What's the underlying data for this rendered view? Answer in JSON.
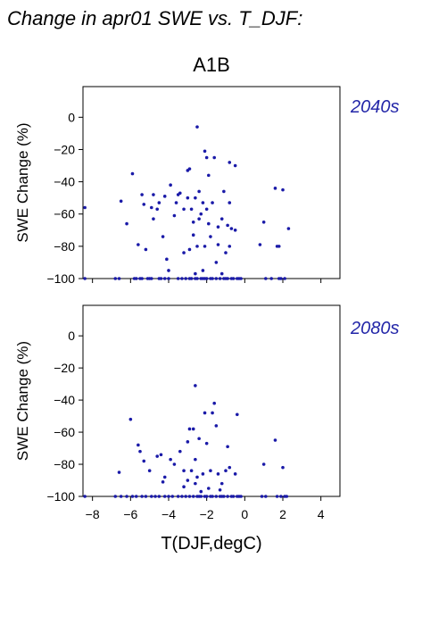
{
  "title": "Change in apr01 SWE vs. T_DJF:",
  "scenario": "A1B",
  "xlabel": "T(DJF,degC)",
  "colors": {
    "points": "#1a1aa8",
    "period_label": "#2326a8",
    "axes": "#000000"
  },
  "chart_data": [
    {
      "type": "scatter",
      "period": "2040s",
      "ylabel": "SWE Change (%)",
      "xlim": [
        -8.5,
        5
      ],
      "ylim": [
        -100,
        19
      ],
      "xticks": [
        -8,
        -6,
        -4,
        -2,
        0,
        2,
        4
      ],
      "yticks": [
        -100,
        -80,
        -60,
        -40,
        -20,
        0
      ],
      "points": [
        [
          -8.4,
          -100
        ],
        [
          -8.4,
          -56
        ],
        [
          -6.8,
          -100
        ],
        [
          -6.6,
          -100
        ],
        [
          -6.5,
          -52
        ],
        [
          -6.2,
          -66
        ],
        [
          -5.9,
          -35
        ],
        [
          -5.8,
          -100
        ],
        [
          -5.7,
          -100
        ],
        [
          -5.6,
          -79
        ],
        [
          -5.5,
          -100
        ],
        [
          -5.4,
          -48
        ],
        [
          -5.4,
          -100
        ],
        [
          -5.3,
          -54
        ],
        [
          -5.2,
          -82
        ],
        [
          -5.1,
          -100
        ],
        [
          -5.0,
          -100
        ],
        [
          -4.9,
          -56
        ],
        [
          -4.9,
          -100
        ],
        [
          -4.8,
          -48
        ],
        [
          -4.8,
          -63
        ],
        [
          -4.6,
          -57
        ],
        [
          -4.5,
          -100
        ],
        [
          -4.5,
          -53
        ],
        [
          -4.4,
          -100
        ],
        [
          -4.3,
          -74
        ],
        [
          -4.2,
          -100
        ],
        [
          -4.2,
          -49
        ],
        [
          -4.1,
          -88
        ],
        [
          -4.0,
          -95
        ],
        [
          -4.0,
          -100
        ],
        [
          -3.9,
          -42
        ],
        [
          -3.7,
          -61
        ],
        [
          -3.6,
          -53
        ],
        [
          -3.5,
          -100
        ],
        [
          -3.5,
          -48
        ],
        [
          -3.4,
          -47
        ],
        [
          -3.3,
          -100
        ],
        [
          -3.2,
          -84
        ],
        [
          -3.2,
          -57
        ],
        [
          -3.1,
          -100
        ],
        [
          -3.0,
          -33
        ],
        [
          -3.0,
          -50
        ],
        [
          -2.9,
          -100
        ],
        [
          -2.9,
          -82
        ],
        [
          -2.9,
          -32
        ],
        [
          -2.8,
          -57
        ],
        [
          -2.8,
          -100
        ],
        [
          -2.7,
          -73
        ],
        [
          -2.7,
          -65
        ],
        [
          -2.6,
          -100
        ],
        [
          -2.6,
          -50
        ],
        [
          -2.6,
          -97
        ],
        [
          -2.5,
          -6
        ],
        [
          -2.5,
          -100
        ],
        [
          -2.5,
          -80
        ],
        [
          -2.4,
          -63
        ],
        [
          -2.4,
          -46
        ],
        [
          -2.3,
          -100
        ],
        [
          -2.3,
          -60
        ],
        [
          -2.2,
          -100
        ],
        [
          -2.2,
          -53
        ],
        [
          -2.2,
          -95
        ],
        [
          -2.1,
          -100
        ],
        [
          -2.1,
          -80
        ],
        [
          -2.1,
          -21
        ],
        [
          -2.0,
          -25
        ],
        [
          -2.0,
          -57
        ],
        [
          -2.0,
          -100
        ],
        [
          -1.9,
          -66
        ],
        [
          -1.9,
          -36
        ],
        [
          -1.8,
          -100
        ],
        [
          -1.8,
          -74
        ],
        [
          -1.7,
          -100
        ],
        [
          -1.7,
          -53
        ],
        [
          -1.6,
          -25
        ],
        [
          -1.5,
          -100
        ],
        [
          -1.5,
          -90
        ],
        [
          -1.4,
          -79
        ],
        [
          -1.4,
          -68
        ],
        [
          -1.3,
          -100
        ],
        [
          -1.2,
          -63
        ],
        [
          -1.2,
          -97
        ],
        [
          -1.1,
          -100
        ],
        [
          -1.1,
          -46
        ],
        [
          -1.0,
          -84
        ],
        [
          -1.0,
          -100
        ],
        [
          -0.9,
          -67
        ],
        [
          -0.9,
          -100
        ],
        [
          -0.8,
          -53
        ],
        [
          -0.8,
          -28
        ],
        [
          -0.8,
          -80
        ],
        [
          -0.7,
          -100
        ],
        [
          -0.7,
          -69
        ],
        [
          -0.6,
          -100
        ],
        [
          -0.5,
          -30
        ],
        [
          -0.5,
          -70
        ],
        [
          -0.4,
          -100
        ],
        [
          -0.3,
          -100
        ],
        [
          -0.2,
          -100
        ],
        [
          0.8,
          -79
        ],
        [
          1.0,
          -65
        ],
        [
          1.1,
          -100
        ],
        [
          1.4,
          -100
        ],
        [
          1.6,
          -44
        ],
        [
          1.7,
          -80
        ],
        [
          1.8,
          -100
        ],
        [
          1.8,
          -80
        ],
        [
          1.9,
          -100
        ],
        [
          2.0,
          -45
        ],
        [
          2.1,
          -100
        ],
        [
          2.3,
          -69
        ]
      ]
    },
    {
      "type": "scatter",
      "period": "2080s",
      "ylabel": "SWE Change (%)",
      "xlim": [
        -8.5,
        5
      ],
      "ylim": [
        -100,
        19
      ],
      "xticks": [
        -8,
        -6,
        -4,
        -2,
        0,
        2,
        4
      ],
      "yticks": [
        -100,
        -80,
        -60,
        -40,
        -20,
        0
      ],
      "points": [
        [
          -8.4,
          -100
        ],
        [
          -6.8,
          -100
        ],
        [
          -6.6,
          -85
        ],
        [
          -6.5,
          -100
        ],
        [
          -6.2,
          -100
        ],
        [
          -6.0,
          -52
        ],
        [
          -5.9,
          -100
        ],
        [
          -5.7,
          -100
        ],
        [
          -5.6,
          -68
        ],
        [
          -5.5,
          -72
        ],
        [
          -5.4,
          -100
        ],
        [
          -5.3,
          -78
        ],
        [
          -5.2,
          -100
        ],
        [
          -5.0,
          -84
        ],
        [
          -4.9,
          -100
        ],
        [
          -4.7,
          -100
        ],
        [
          -4.6,
          -75
        ],
        [
          -4.5,
          -100
        ],
        [
          -4.4,
          -74
        ],
        [
          -4.3,
          -91
        ],
        [
          -4.2,
          -100
        ],
        [
          -4.2,
          -88
        ],
        [
          -4.0,
          -100
        ],
        [
          -3.9,
          -77
        ],
        [
          -3.8,
          -100
        ],
        [
          -3.7,
          -80
        ],
        [
          -3.5,
          -100
        ],
        [
          -3.4,
          -72
        ],
        [
          -3.3,
          -100
        ],
        [
          -3.2,
          -84
        ],
        [
          -3.2,
          -94
        ],
        [
          -3.1,
          -100
        ],
        [
          -3.0,
          -66
        ],
        [
          -3.0,
          -90
        ],
        [
          -2.9,
          -100
        ],
        [
          -2.9,
          -58
        ],
        [
          -2.8,
          -84
        ],
        [
          -2.7,
          -100
        ],
        [
          -2.7,
          -58
        ],
        [
          -2.6,
          -77
        ],
        [
          -2.6,
          -31
        ],
        [
          -2.6,
          -92
        ],
        [
          -2.5,
          -100
        ],
        [
          -2.5,
          -88
        ],
        [
          -2.4,
          -100
        ],
        [
          -2.4,
          -64
        ],
        [
          -2.3,
          -97
        ],
        [
          -2.3,
          -100
        ],
        [
          -2.2,
          -86
        ],
        [
          -2.1,
          -100
        ],
        [
          -2.1,
          -48
        ],
        [
          -2.0,
          -67
        ],
        [
          -2.0,
          -100
        ],
        [
          -1.9,
          -95
        ],
        [
          -1.8,
          -100
        ],
        [
          -1.8,
          -84
        ],
        [
          -1.7,
          -100
        ],
        [
          -1.7,
          -48
        ],
        [
          -1.6,
          -42
        ],
        [
          -1.5,
          -100
        ],
        [
          -1.5,
          -56
        ],
        [
          -1.4,
          -86
        ],
        [
          -1.3,
          -100
        ],
        [
          -1.3,
          -96
        ],
        [
          -1.2,
          -100
        ],
        [
          -1.2,
          -92
        ],
        [
          -1.1,
          -100
        ],
        [
          -1.0,
          -84
        ],
        [
          -0.9,
          -100
        ],
        [
          -0.9,
          -69
        ],
        [
          -0.8,
          -82
        ],
        [
          -0.7,
          -100
        ],
        [
          -0.6,
          -100
        ],
        [
          -0.5,
          -86
        ],
        [
          -0.4,
          -49
        ],
        [
          -0.4,
          -100
        ],
        [
          -0.3,
          -100
        ],
        [
          -0.2,
          -100
        ],
        [
          0.9,
          -100
        ],
        [
          1.0,
          -80
        ],
        [
          1.1,
          -100
        ],
        [
          1.6,
          -65
        ],
        [
          1.7,
          -100
        ],
        [
          1.9,
          -100
        ],
        [
          2.0,
          -82
        ],
        [
          2.1,
          -100
        ],
        [
          2.2,
          -100
        ]
      ]
    }
  ]
}
